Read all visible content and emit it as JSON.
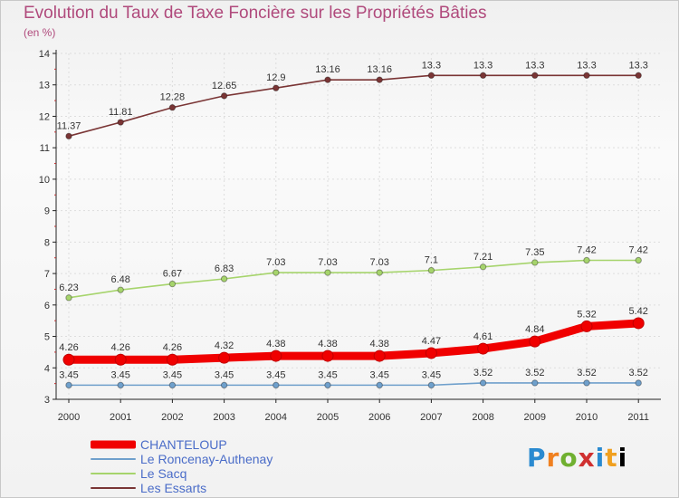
{
  "chart_data": {
    "type": "line",
    "title": "Evolution du Taux de Taxe Foncière sur les Propriétés Bâties",
    "ylabel": "(en %)",
    "xlabel": "",
    "ylim": [
      3,
      14
    ],
    "yticks": [
      3,
      4,
      5,
      6,
      7,
      8,
      9,
      10,
      11,
      12,
      13,
      14
    ],
    "x": [
      "2000",
      "2001",
      "2002",
      "2003",
      "2004",
      "2005",
      "2006",
      "2007",
      "2008",
      "2009",
      "2010",
      "2011"
    ],
    "series": [
      {
        "name": "Les Essarts",
        "color": "#7a3535",
        "values": [
          11.37,
          11.81,
          12.28,
          12.65,
          12.9,
          13.16,
          13.16,
          13.3,
          13.3,
          13.3,
          13.3,
          13.3
        ],
        "labels": [
          "11.37",
          "11.81",
          "12.28",
          "12.65",
          "12.9",
          "13.16",
          "13.16",
          "13.3",
          "13.3",
          "13.3",
          "13.3",
          "13.3"
        ]
      },
      {
        "name": "Le Sacq",
        "color": "#a6d46c",
        "values": [
          6.23,
          6.48,
          6.67,
          6.83,
          7.03,
          7.03,
          7.03,
          7.1,
          7.21,
          7.35,
          7.42,
          7.42
        ],
        "labels": [
          "6.23",
          "6.48",
          "6.67",
          "6.83",
          "7.03",
          "7.03",
          "7.03",
          "7.1",
          "7.21",
          "7.35",
          "7.42",
          "7.42"
        ]
      },
      {
        "name": "CHANTELOUP",
        "color": "#f00000",
        "values": [
          4.26,
          4.26,
          4.26,
          4.32,
          4.38,
          4.38,
          4.38,
          4.47,
          4.61,
          4.84,
          5.32,
          5.42
        ],
        "labels": [
          "4.26",
          "4.26",
          "4.26",
          "4.32",
          "4.38",
          "4.38",
          "4.38",
          "4.47",
          "4.61",
          "4.84",
          "5.32",
          "5.42"
        ]
      },
      {
        "name": "Le Roncenay-Authenay",
        "color": "#6fa0cc",
        "values": [
          3.45,
          3.45,
          3.45,
          3.45,
          3.45,
          3.45,
          3.45,
          3.45,
          3.52,
          3.52,
          3.52,
          3.52
        ],
        "labels": [
          "3.45",
          "3.45",
          "3.45",
          "3.45",
          "3.45",
          "3.45",
          "3.45",
          "3.45",
          "3.52",
          "3.52",
          "3.52",
          "3.52"
        ]
      }
    ],
    "legend": [
      "CHANTELOUP",
      "Le Roncenay-Authenay",
      "Le Sacq",
      "Les Essarts"
    ]
  },
  "logo": [
    "P",
    "r",
    "o",
    "x",
    "i",
    "t",
    "i"
  ]
}
